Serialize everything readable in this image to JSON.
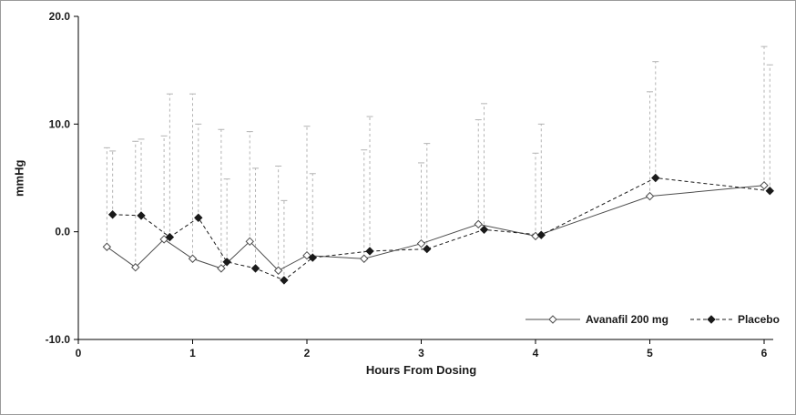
{
  "figure": {
    "background": "#ffffff",
    "border_color": "#9b9b9b"
  },
  "chart_data": {
    "type": "line",
    "title": "",
    "xlabel": "Hours From Dosing",
    "ylabel": "mmHg",
    "xlim": [
      0,
      6
    ],
    "ylim": [
      -10,
      20
    ],
    "x_ticks": [
      0,
      1,
      2,
      3,
      4,
      5,
      6
    ],
    "x_tick_labels": [
      "0",
      "1",
      "2",
      "3",
      "4",
      "5",
      "6"
    ],
    "y_ticks": [
      -10,
      0,
      10,
      20
    ],
    "y_tick_labels": [
      "-10.0",
      "0.0",
      "10.0",
      "20.0"
    ],
    "grid": false,
    "legend_position": "inside-bottom-right",
    "axis_color": "#000000",
    "error_bar_color": "#b3b3b3",
    "error_bar_style": "dashed",
    "series": [
      {
        "name": "Avanafil 200 mg",
        "marker": "open-diamond",
        "line_style": "solid",
        "color": "#4d4d4d",
        "x": [
          0.25,
          0.5,
          0.75,
          1.0,
          1.25,
          1.5,
          1.75,
          2.0,
          2.5,
          3.0,
          3.5,
          4.0,
          5.0,
          6.0
        ],
        "y": [
          -1.4,
          -3.3,
          -0.7,
          -2.5,
          -3.4,
          -0.9,
          -3.6,
          -2.2,
          -2.5,
          -1.1,
          0.7,
          -0.4,
          3.3,
          4.3
        ],
        "error_upper": [
          7.8,
          8.4,
          8.9,
          12.8,
          9.5,
          9.3,
          6.1,
          9.8,
          7.6,
          6.4,
          10.4,
          7.3,
          13.0,
          17.2
        ]
      },
      {
        "name": "Placebo",
        "marker": "filled-diamond",
        "line_style": "dashed",
        "color": "#1a1a1a",
        "x": [
          0.3,
          0.55,
          0.8,
          1.05,
          1.3,
          1.55,
          1.8,
          2.05,
          2.55,
          3.05,
          3.55,
          4.05,
          5.05,
          6.05
        ],
        "y": [
          1.6,
          1.5,
          -0.5,
          1.3,
          -2.8,
          -3.4,
          -4.5,
          -2.4,
          -1.8,
          -1.6,
          0.2,
          -0.3,
          5.0,
          3.8
        ],
        "error_upper": [
          7.5,
          8.6,
          12.8,
          10.0,
          4.9,
          5.9,
          2.9,
          5.4,
          10.7,
          8.2,
          11.9,
          10.0,
          15.8,
          15.5
        ]
      }
    ]
  }
}
